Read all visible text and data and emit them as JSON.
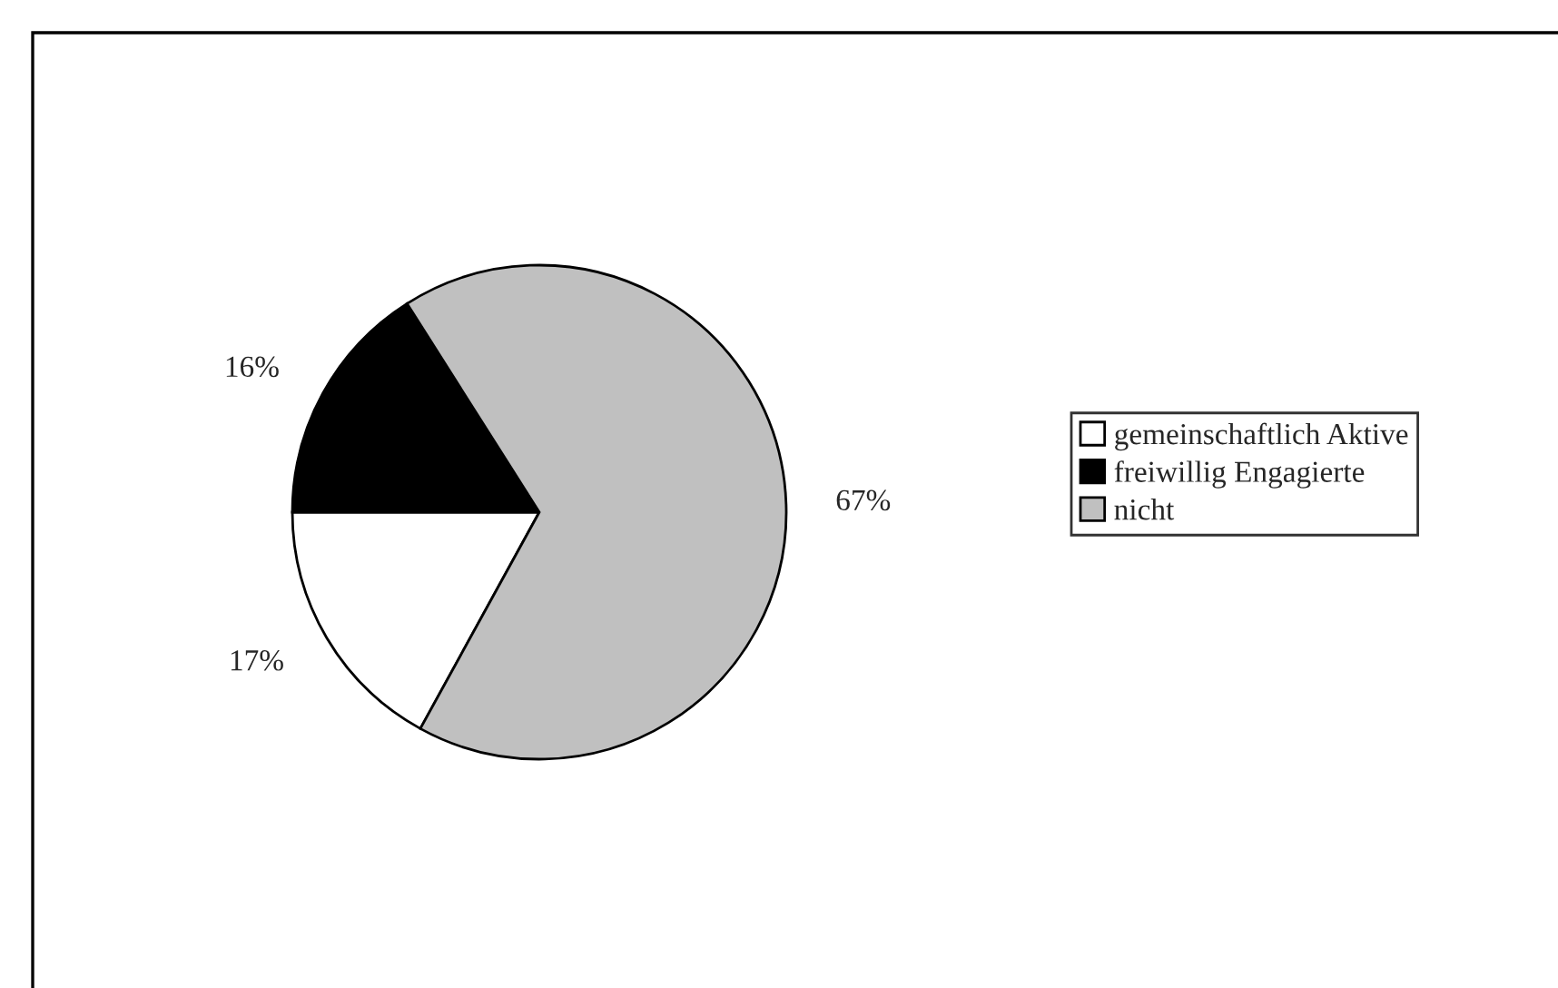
{
  "chart_data": {
    "type": "pie",
    "categories": [
      "gemeinschaftlich Aktive",
      "freiwillig Engagierte",
      "nicht"
    ],
    "values": [
      17,
      16,
      67
    ],
    "colors": [
      "#ffffff",
      "#000000",
      "#c0c0c0"
    ],
    "value_labels": [
      "17%",
      "16%",
      "67%"
    ],
    "legend": "right"
  }
}
